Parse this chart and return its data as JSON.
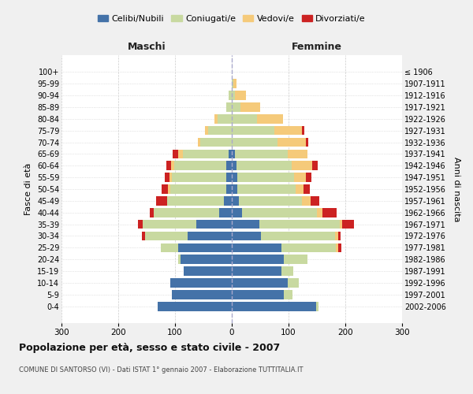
{
  "age_groups": [
    "0-4",
    "5-9",
    "10-14",
    "15-19",
    "20-24",
    "25-29",
    "30-34",
    "35-39",
    "40-44",
    "45-49",
    "50-54",
    "55-59",
    "60-64",
    "65-69",
    "70-74",
    "75-79",
    "80-84",
    "85-89",
    "90-94",
    "95-99",
    "100+"
  ],
  "birth_years": [
    "2002-2006",
    "1997-2001",
    "1992-1996",
    "1987-1991",
    "1982-1986",
    "1977-1981",
    "1972-1976",
    "1967-1971",
    "1962-1966",
    "1957-1961",
    "1952-1956",
    "1947-1951",
    "1942-1946",
    "1937-1941",
    "1932-1936",
    "1927-1931",
    "1922-1926",
    "1917-1921",
    "1912-1916",
    "1907-1911",
    "≤ 1906"
  ],
  "males": {
    "celibi": [
      130,
      105,
      108,
      85,
      90,
      95,
      78,
      62,
      22,
      14,
      10,
      10,
      10,
      6,
      0,
      0,
      0,
      0,
      0,
      0,
      0
    ],
    "coniugati": [
      0,
      0,
      0,
      0,
      5,
      30,
      75,
      95,
      115,
      100,
      98,
      95,
      92,
      80,
      55,
      42,
      25,
      10,
      5,
      0,
      0
    ],
    "vedovi": [
      0,
      0,
      0,
      0,
      0,
      0,
      0,
      0,
      0,
      0,
      5,
      5,
      5,
      8,
      5,
      5,
      5,
      0,
      0,
      0,
      0
    ],
    "divorziati": [
      0,
      0,
      0,
      0,
      0,
      0,
      5,
      8,
      8,
      20,
      10,
      8,
      8,
      10,
      0,
      0,
      0,
      0,
      0,
      0,
      0
    ]
  },
  "females": {
    "nubili": [
      148,
      92,
      98,
      88,
      92,
      88,
      52,
      48,
      18,
      12,
      10,
      10,
      8,
      6,
      0,
      0,
      0,
      0,
      0,
      0,
      0
    ],
    "coniugate": [
      5,
      15,
      20,
      20,
      42,
      95,
      130,
      142,
      132,
      112,
      102,
      100,
      98,
      92,
      80,
      75,
      45,
      15,
      5,
      3,
      0
    ],
    "vedove": [
      0,
      0,
      0,
      0,
      0,
      5,
      5,
      5,
      10,
      15,
      15,
      20,
      35,
      35,
      50,
      48,
      45,
      35,
      20,
      5,
      0
    ],
    "divorziate": [
      0,
      0,
      0,
      0,
      0,
      5,
      5,
      20,
      25,
      15,
      10,
      10,
      10,
      0,
      5,
      5,
      0,
      0,
      0,
      0,
      0
    ]
  },
  "colors": {
    "celibi": "#4472a8",
    "coniugati": "#c8d9a0",
    "vedovi": "#f5ca7a",
    "divorziati": "#cc2222"
  },
  "title": "Popolazione per età, sesso e stato civile - 2007",
  "subtitle": "COMUNE DI SANTORSO (VI) - Dati ISTAT 1° gennaio 2007 - Elaborazione TUTTITALIA.IT",
  "xlabel_left": "Maschi",
  "xlabel_right": "Femmine",
  "ylabel_left": "Fasce di età",
  "ylabel_right": "Anni di nascita",
  "xlim": 300,
  "bg_color": "#f0f0f0",
  "plot_bg_color": "#ffffff",
  "legend_labels": [
    "Celibi/Nubili",
    "Coniugati/e",
    "Vedovi/e",
    "Divorziati/e"
  ]
}
